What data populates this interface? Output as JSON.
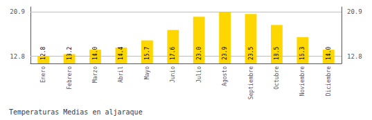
{
  "chart_data": {
    "type": "bar",
    "title": "Temperaturas Medias en aljaraque",
    "categories": [
      "Enero",
      "Febrero",
      "Marzo",
      "Abril",
      "Mayo",
      "Junio",
      "Julio",
      "Agosto",
      "Septiembre",
      "Octubre",
      "Noviembre",
      "Diciembre"
    ],
    "values": [
      12.8,
      13.2,
      14.0,
      14.4,
      15.7,
      17.6,
      20.0,
      20.9,
      20.5,
      18.5,
      16.3,
      14.0
    ],
    "value_labels": [
      "12.8",
      "13.2",
      "14.0",
      "14.4",
      "15.7",
      "17.6",
      "20.0",
      "20.9",
      "20.5",
      "18.5",
      "16.3",
      "14.0"
    ],
    "data_labels": true,
    "color": "#FFD700",
    "ylim": [
      11.5,
      21.8
    ],
    "yticks": [
      12.8,
      20.9
    ],
    "grid": true
  }
}
